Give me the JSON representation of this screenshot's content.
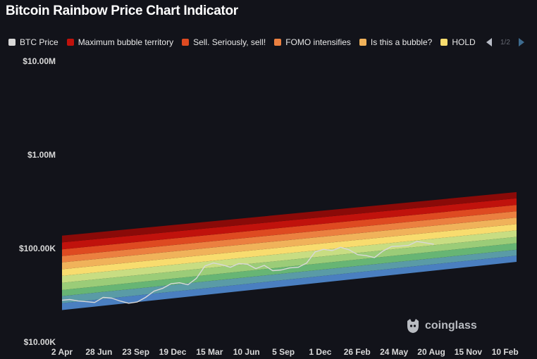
{
  "title": "Bitcoin Rainbow Price Chart Indicator",
  "legend": {
    "items": [
      {
        "label": "BTC Price",
        "color": "#d8d8d8"
      },
      {
        "label": "Maximum bubble territory",
        "color": "#c0120c"
      },
      {
        "label": "Sell. Seriously, sell!",
        "color": "#de4a21"
      },
      {
        "label": "FOMO intensifies",
        "color": "#eb8040"
      },
      {
        "label": "Is this a bubble?",
        "color": "#f0b25a"
      },
      {
        "label": "HOLD",
        "color": "#f8dc6e"
      }
    ],
    "page": "1/2",
    "prev_icon": "triangle-left",
    "next_icon": "triangle-right"
  },
  "watermark": {
    "text": "coinglass",
    "icon": "coinglass-logo"
  },
  "chart_data": {
    "type": "area",
    "y_scale": "log",
    "ylim": [
      10000,
      10000000
    ],
    "y_ticks": [
      {
        "value": 10000000,
        "label": "$10.00M"
      },
      {
        "value": 1000000,
        "label": "$1.00M"
      },
      {
        "value": 100000,
        "label": "$100.00K"
      },
      {
        "value": 10000,
        "label": "$10.00K"
      }
    ],
    "x_ticks": [
      {
        "date": "2023-04-02",
        "label": "2 Apr"
      },
      {
        "date": "2023-06-28",
        "label": "28 Jun"
      },
      {
        "date": "2023-09-23",
        "label": "23 Sep"
      },
      {
        "date": "2023-12-19",
        "label": "19 Dec"
      },
      {
        "date": "2024-03-15",
        "label": "15 Mar"
      },
      {
        "date": "2024-06-10",
        "label": "10 Jun"
      },
      {
        "date": "2024-09-05",
        "label": "5 Sep"
      },
      {
        "date": "2024-12-01",
        "label": "1 Dec"
      },
      {
        "date": "2025-02-26",
        "label": "26 Feb"
      },
      {
        "date": "2025-05-24",
        "label": "24 May"
      },
      {
        "date": "2025-08-20",
        "label": "20 Aug"
      },
      {
        "date": "2025-11-15",
        "label": "15 Nov"
      },
      {
        "date": "2026-02-10",
        "label": "10 Feb"
      }
    ],
    "xlim": [
      "2023-04-02",
      "2026-03-09"
    ],
    "band_dates": [
      "2023-04-02",
      "2026-03-09"
    ],
    "bands": [
      {
        "color": "#4a7fc0",
        "lower": [
          22000,
          72000
        ],
        "upper": [
          26000,
          84000
        ]
      },
      {
        "color": "#5a9ba6",
        "lower": [
          26000,
          84000
        ],
        "upper": [
          31000,
          97000
        ]
      },
      {
        "color": "#67b574",
        "lower": [
          31000,
          97000
        ],
        "upper": [
          36000,
          114000
        ]
      },
      {
        "color": "#9bcc78",
        "lower": [
          36000,
          114000
        ],
        "upper": [
          43000,
          133000
        ]
      },
      {
        "color": "#c8dd82",
        "lower": [
          43000,
          133000
        ],
        "upper": [
          51000,
          156000
        ]
      },
      {
        "color": "#f8dc6e",
        "lower": [
          51000,
          156000
        ],
        "upper": [
          60000,
          182000
        ]
      },
      {
        "color": "#f0b25a",
        "lower": [
          60000,
          182000
        ],
        "upper": [
          71000,
          214000
        ]
      },
      {
        "color": "#eb8040",
        "lower": [
          71000,
          214000
        ],
        "upper": [
          83000,
          250000
        ]
      },
      {
        "color": "#de4a21",
        "lower": [
          83000,
          250000
        ],
        "upper": [
          98000,
          292000
        ]
      },
      {
        "color": "#c0120c",
        "lower": [
          98000,
          292000
        ],
        "upper": [
          116000,
          343000
        ]
      },
      {
        "color": "#8a0a08",
        "lower": [
          116000,
          343000
        ],
        "upper": [
          137000,
          400000
        ]
      }
    ],
    "series": [
      {
        "color": "#d8d8d8",
        "x": [
          "2023-04-02",
          "2023-04-20",
          "2023-05-10",
          "2023-05-30",
          "2023-06-18",
          "2023-07-08",
          "2023-07-28",
          "2023-08-17",
          "2023-09-06",
          "2023-09-26",
          "2023-10-16",
          "2023-11-05",
          "2023-11-25",
          "2023-12-15",
          "2024-01-04",
          "2024-01-24",
          "2024-02-13",
          "2024-03-04",
          "2024-03-24",
          "2024-04-13",
          "2024-05-03",
          "2024-05-23",
          "2024-06-12",
          "2024-07-02",
          "2024-07-22",
          "2024-08-11",
          "2024-08-31",
          "2024-09-20",
          "2024-10-10",
          "2024-10-30",
          "2024-11-19",
          "2024-12-09",
          "2024-12-29",
          "2025-01-18",
          "2025-02-07",
          "2025-02-27",
          "2025-03-19",
          "2025-04-08",
          "2025-04-28",
          "2025-05-18",
          "2025-06-07",
          "2025-06-27",
          "2025-07-17",
          "2025-08-06",
          "2025-08-26"
        ],
        "y": [
          28000,
          28500,
          27500,
          27000,
          26500,
          30000,
          29500,
          27500,
          26000,
          26800,
          30000,
          35000,
          37500,
          42000,
          43000,
          41000,
          48000,
          65000,
          70000,
          67000,
          63000,
          69000,
          68000,
          61000,
          66000,
          58000,
          59000,
          62000,
          63000,
          70000,
          92000,
          98000,
          95000,
          103000,
          97000,
          86000,
          84000,
          80000,
          94000,
          105000,
          106000,
          108000,
          119000,
          115000,
          111000
        ]
      }
    ]
  }
}
